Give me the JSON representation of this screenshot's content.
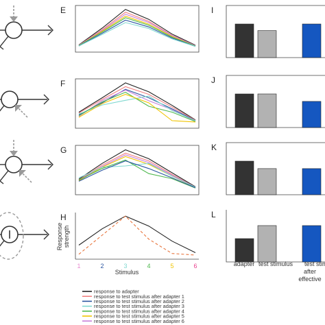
{
  "colors": {
    "adapter": "#222222",
    "after1": "#f08080",
    "after2": "#2a55a0",
    "after3": "#7fd8d0",
    "after4": "#4fb84f",
    "after5": "#f0c400",
    "after6": "#c77fd9",
    "dashed": "#e8743c",
    "bar_adapter": "#333333",
    "bar_test": "#b2b2b2",
    "bar_blue": "#1557c0",
    "neuron": "#333333",
    "arrow": "#999999"
  },
  "panel_letters": [
    "E",
    "F",
    "G",
    "H",
    "I",
    "J",
    "K",
    "L"
  ],
  "ylabel": [
    "Response",
    "strength"
  ],
  "xlabel": "Stimulus",
  "x_ticks": [
    {
      "label": "1",
      "color": "#e88ad0"
    },
    {
      "label": "2",
      "color": "#2a55a0"
    },
    {
      "label": "3",
      "color": "#7fd8d0"
    },
    {
      "label": "4",
      "color": "#4fb84f"
    },
    {
      "label": "5",
      "color": "#f0c400"
    },
    {
      "label": "6",
      "color": "#e83c8c"
    }
  ],
  "bar_labels": [
    "adapter",
    "test stimulus",
    "test stim",
    "after",
    "effective"
  ],
  "legend": [
    "response to adapter",
    "response to test stimulus after adapter 1",
    "response to test stimulus after adapter 2",
    "response to test stimulus after adapter 3",
    "response to test stimulus after adapter 4",
    "response to test stimulus after adapter 5",
    "response to test stimulus after adapter 6"
  ],
  "chart_data": [
    {
      "panel": "E",
      "type": "line",
      "x": [
        1,
        2,
        3,
        4,
        5,
        6
      ],
      "ylim": [
        0,
        1
      ],
      "series": [
        {
          "key": "adapter",
          "values": [
            0.08,
            0.5,
            0.97,
            0.72,
            0.35,
            0.07
          ]
        },
        {
          "key": "after1",
          "values": [
            0.07,
            0.46,
            0.9,
            0.67,
            0.32,
            0.06
          ]
        },
        {
          "key": "after6",
          "values": [
            0.07,
            0.44,
            0.85,
            0.64,
            0.31,
            0.06
          ]
        },
        {
          "key": "after5",
          "values": [
            0.06,
            0.42,
            0.8,
            0.6,
            0.29,
            0.05
          ]
        },
        {
          "key": "after4",
          "values": [
            0.06,
            0.4,
            0.76,
            0.57,
            0.27,
            0.05
          ]
        },
        {
          "key": "after2",
          "values": [
            0.05,
            0.37,
            0.7,
            0.53,
            0.25,
            0.04
          ]
        },
        {
          "key": "after3",
          "values": [
            0.05,
            0.34,
            0.64,
            0.49,
            0.23,
            0.04
          ]
        }
      ]
    },
    {
      "panel": "F",
      "type": "line",
      "x": [
        1,
        2,
        3,
        4,
        5,
        6
      ],
      "ylim": [
        0,
        1
      ],
      "series": [
        {
          "key": "adapter",
          "values": [
            0.28,
            0.62,
            0.97,
            0.76,
            0.44,
            0.1
          ]
        },
        {
          "key": "after1",
          "values": [
            0.26,
            0.58,
            0.88,
            0.7,
            0.4,
            0.09
          ]
        },
        {
          "key": "after2",
          "values": [
            0.22,
            0.5,
            0.82,
            0.62,
            0.36,
            0.08
          ]
        },
        {
          "key": "after6",
          "values": [
            0.18,
            0.55,
            0.8,
            0.55,
            0.34,
            0.06
          ]
        },
        {
          "key": "after3",
          "values": [
            0.24,
            0.45,
            0.56,
            0.66,
            0.32,
            0.08
          ]
        },
        {
          "key": "after4",
          "values": [
            0.2,
            0.52,
            0.75,
            0.42,
            0.28,
            0.06
          ]
        },
        {
          "key": "after5",
          "values": [
            0.16,
            0.48,
            0.7,
            0.5,
            0.08,
            0.05
          ]
        }
      ]
    },
    {
      "panel": "G",
      "type": "line",
      "x": [
        1,
        2,
        3,
        4,
        5,
        6
      ],
      "ylim": [
        0,
        1
      ],
      "series": [
        {
          "key": "adapter",
          "values": [
            0.27,
            0.64,
            0.96,
            0.75,
            0.42,
            0.09
          ]
        },
        {
          "key": "after1",
          "values": [
            0.25,
            0.6,
            0.88,
            0.7,
            0.38,
            0.08
          ]
        },
        {
          "key": "after6",
          "values": [
            0.24,
            0.57,
            0.84,
            0.66,
            0.36,
            0.08
          ]
        },
        {
          "key": "after5",
          "values": [
            0.23,
            0.55,
            0.8,
            0.62,
            0.34,
            0.07
          ]
        },
        {
          "key": "after3",
          "values": [
            0.3,
            0.55,
            0.58,
            0.64,
            0.34,
            0.08
          ]
        },
        {
          "key": "after4",
          "values": [
            0.25,
            0.52,
            0.72,
            0.4,
            0.28,
            0.06
          ]
        },
        {
          "key": "after2",
          "values": [
            0.22,
            0.48,
            0.7,
            0.52,
            0.3,
            0.07
          ]
        }
      ]
    },
    {
      "panel": "H",
      "type": "line",
      "x": [
        1,
        2,
        3,
        4,
        5,
        6
      ],
      "ylim": [
        0,
        1
      ],
      "series": [
        {
          "key": "adapter",
          "values": [
            0.25,
            0.66,
            0.98,
            0.73,
            0.35,
            0.06
          ]
        },
        {
          "key": "dashed",
          "dashed": true,
          "values": [
            0.02,
            0.5,
            0.98,
            0.4,
            0.04,
            0.0
          ]
        }
      ]
    },
    {
      "panel": "I",
      "type": "bar",
      "bars": [
        {
          "key": "bar_adapter",
          "value": 0.72
        },
        {
          "key": "bar_test",
          "value": 0.58
        },
        {
          "key": "bar_blue",
          "value": 0.72
        }
      ]
    },
    {
      "panel": "J",
      "type": "bar",
      "bars": [
        {
          "key": "bar_adapter",
          "value": 0.72
        },
        {
          "key": "bar_test",
          "value": 0.72
        },
        {
          "key": "bar_blue",
          "value": 0.56
        }
      ]
    },
    {
      "panel": "K",
      "type": "bar",
      "bars": [
        {
          "key": "bar_adapter",
          "value": 0.72
        },
        {
          "key": "bar_test",
          "value": 0.56
        },
        {
          "key": "bar_blue",
          "value": 0.56
        }
      ]
    },
    {
      "panel": "L",
      "type": "bar",
      "bars": [
        {
          "key": "bar_adapter",
          "value": 0.5
        },
        {
          "key": "bar_test",
          "value": 0.78
        },
        {
          "key": "bar_blue",
          "value": 0.78
        }
      ]
    }
  ]
}
